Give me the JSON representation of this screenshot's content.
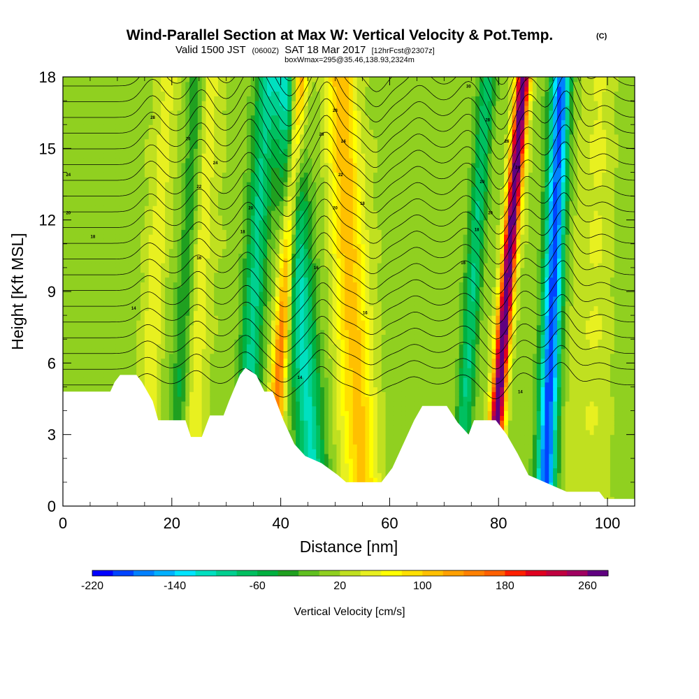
{
  "chart_data": {
    "type": "heatmap",
    "title": "Wind-Parallel Section at Max W: Vertical Velocity & Pot.Temp.",
    "title_mark": "(C)",
    "subtitle_main_a": "Valid 1500 JST",
    "subtitle_utc": "(0600Z)",
    "subtitle_main_b": "SAT 18 Mar 2017",
    "subtitle_fcst": "[12hrFcst@2307z]",
    "subtitle_box": "boxWmax=295@35.46,138.93,2324m",
    "xlabel": "Distance [nm]",
    "ylabel": "Height [Kft MSL]",
    "xlim": [
      0,
      105
    ],
    "ylim": [
      0,
      18
    ],
    "x_ticks": [
      0,
      20,
      40,
      60,
      80,
      100
    ],
    "x_tick_labels": [
      "0",
      "20",
      "40",
      "60",
      "80",
      "100"
    ],
    "y_ticks": [
      0,
      3,
      6,
      9,
      12,
      15,
      18
    ],
    "y_tick_labels": [
      "0",
      "3",
      "6",
      "9",
      "12",
      "15",
      "18"
    ],
    "colorbar": {
      "label": "Vertical Velocity [cm/s]",
      "min": -220,
      "max": 280,
      "step": 20,
      "tick_values": [
        -220,
        -140,
        -60,
        20,
        100,
        180,
        260
      ],
      "tick_labels": [
        "-220",
        "-140",
        "-60",
        "20",
        "100",
        "180",
        "260"
      ],
      "colors": [
        "#0000ff",
        "#0044ff",
        "#0080ff",
        "#00b0ff",
        "#00e5ff",
        "#00e0c0",
        "#00d090",
        "#00c060",
        "#00b040",
        "#20a020",
        "#60c020",
        "#90d020",
        "#c0e020",
        "#e8f020",
        "#ffff00",
        "#ffe000",
        "#ffc000",
        "#ffa000",
        "#ff8000",
        "#ff6000",
        "#ff2000",
        "#e00020",
        "#c00040",
        "#a00060",
        "#600080"
      ]
    },
    "terrain": [
      {
        "x": 0,
        "y": 4.8
      },
      {
        "x": 8.7,
        "y": 4.8
      },
      {
        "x": 9.5,
        "y": 5.2
      },
      {
        "x": 10.5,
        "y": 5.5
      },
      {
        "x": 13.5,
        "y": 5.5
      },
      {
        "x": 14.5,
        "y": 5.2
      },
      {
        "x": 16.5,
        "y": 4.4
      },
      {
        "x": 17.5,
        "y": 3.6
      },
      {
        "x": 22.5,
        "y": 3.6
      },
      {
        "x": 23.5,
        "y": 2.9
      },
      {
        "x": 25.5,
        "y": 2.9
      },
      {
        "x": 27.0,
        "y": 3.8
      },
      {
        "x": 29.5,
        "y": 3.8
      },
      {
        "x": 30.5,
        "y": 4.4
      },
      {
        "x": 32.5,
        "y": 5.5
      },
      {
        "x": 33.5,
        "y": 5.8
      },
      {
        "x": 35.5,
        "y": 5.5
      },
      {
        "x": 37.0,
        "y": 4.8
      },
      {
        "x": 38.5,
        "y": 4.8
      },
      {
        "x": 40.5,
        "y": 3.6
      },
      {
        "x": 42.5,
        "y": 2.6
      },
      {
        "x": 44.5,
        "y": 2.1
      },
      {
        "x": 47.5,
        "y": 1.8
      },
      {
        "x": 50.5,
        "y": 1.3
      },
      {
        "x": 52.0,
        "y": 1.0
      },
      {
        "x": 58.5,
        "y": 1.0
      },
      {
        "x": 60.5,
        "y": 1.6
      },
      {
        "x": 62.5,
        "y": 2.6
      },
      {
        "x": 64.5,
        "y": 3.6
      },
      {
        "x": 66.0,
        "y": 4.2
      },
      {
        "x": 70.5,
        "y": 4.2
      },
      {
        "x": 72.5,
        "y": 3.5
      },
      {
        "x": 74.5,
        "y": 3.0
      },
      {
        "x": 75.5,
        "y": 3.6
      },
      {
        "x": 79.5,
        "y": 3.6
      },
      {
        "x": 81.5,
        "y": 3.0
      },
      {
        "x": 83.5,
        "y": 2.2
      },
      {
        "x": 85.5,
        "y": 1.3
      },
      {
        "x": 88.5,
        "y": 1.0
      },
      {
        "x": 92.5,
        "y": 0.6
      },
      {
        "x": 98.5,
        "y": 0.6
      },
      {
        "x": 99.5,
        "y": 0.3
      },
      {
        "x": 105,
        "y": 0.3
      }
    ],
    "updraft_bands": [
      {
        "x": 14.5,
        "x_top": 19.5,
        "half_width": 2.0,
        "peak": 40
      },
      {
        "x": 23.5,
        "x_top": 27.0,
        "half_width": 2.2,
        "peak": 40
      },
      {
        "x": 38.0,
        "x_top": 43.5,
        "half_width": 1.4,
        "peak": 150
      },
      {
        "x": 55.0,
        "x_top": 51.0,
        "half_width": 3.0,
        "peak": 100
      },
      {
        "x": 78.5,
        "x_top": 84.5,
        "half_width": 1.3,
        "peak": 280
      },
      {
        "x": 96.0,
        "x_top": 98.0,
        "half_width": 3.5,
        "peak": 30
      }
    ],
    "downdraft_bands": [
      {
        "x": 20.5,
        "x_top": 24.5,
        "half_width": 1.5,
        "peak": -60
      },
      {
        "x": 33.0,
        "x_top": 37.5,
        "half_width": 2.0,
        "peak": -100
      },
      {
        "x": 46.0,
        "x_top": 41.0,
        "half_width": 2.5,
        "peak": -120
      },
      {
        "x": 72.5,
        "x_top": 78.0,
        "half_width": 1.5,
        "peak": -90
      },
      {
        "x": 88.5,
        "x_top": 91.5,
        "half_width": 1.8,
        "peak": -200
      }
    ],
    "contours": {
      "variable": "Potential temperature",
      "levels": [
        8,
        9,
        10,
        11,
        12,
        13,
        14,
        15,
        16,
        17,
        18,
        19,
        20,
        21,
        22,
        23,
        24,
        25,
        26,
        27,
        28,
        29,
        30,
        31,
        32
      ],
      "visible_labels": [
        {
          "text": "28",
          "x": 16.5,
          "y": 16.3
        },
        {
          "text": "26",
          "x": 23.0,
          "y": 15.4
        },
        {
          "text": "24",
          "x": 28.0,
          "y": 14.4
        },
        {
          "text": "24",
          "x": 1.0,
          "y": 13.9
        },
        {
          "text": "22",
          "x": 25.0,
          "y": 13.4
        },
        {
          "text": "20",
          "x": 1.0,
          "y": 12.3
        },
        {
          "text": "20",
          "x": 34.5,
          "y": 12.5
        },
        {
          "text": "18",
          "x": 5.5,
          "y": 11.3
        },
        {
          "text": "18",
          "x": 33.0,
          "y": 11.5
        },
        {
          "text": "16",
          "x": 25.0,
          "y": 10.4
        },
        {
          "text": "16",
          "x": 46.5,
          "y": 10.0
        },
        {
          "text": "14",
          "x": 13.0,
          "y": 8.3
        },
        {
          "text": "14",
          "x": 43.5,
          "y": 5.4
        },
        {
          "text": "14",
          "x": 84.0,
          "y": 4.8
        },
        {
          "text": "16",
          "x": 55.5,
          "y": 8.1
        },
        {
          "text": "28",
          "x": 50.0,
          "y": 16.6
        },
        {
          "text": "28",
          "x": 47.5,
          "y": 15.6
        },
        {
          "text": "24",
          "x": 51.5,
          "y": 15.3
        },
        {
          "text": "22",
          "x": 51.0,
          "y": 13.9
        },
        {
          "text": "20",
          "x": 50.0,
          "y": 12.5
        },
        {
          "text": "18",
          "x": 55.0,
          "y": 12.7
        },
        {
          "text": "30",
          "x": 74.5,
          "y": 17.6
        },
        {
          "text": "28",
          "x": 78.0,
          "y": 16.2
        },
        {
          "text": "26",
          "x": 81.5,
          "y": 15.3
        },
        {
          "text": "24",
          "x": 83.5,
          "y": 14.2
        },
        {
          "text": "20",
          "x": 77.0,
          "y": 13.6
        },
        {
          "text": "20",
          "x": 78.5,
          "y": 12.3
        },
        {
          "text": "18",
          "x": 76.0,
          "y": 11.6
        },
        {
          "text": "16",
          "x": 73.5,
          "y": 10.2
        }
      ]
    }
  }
}
